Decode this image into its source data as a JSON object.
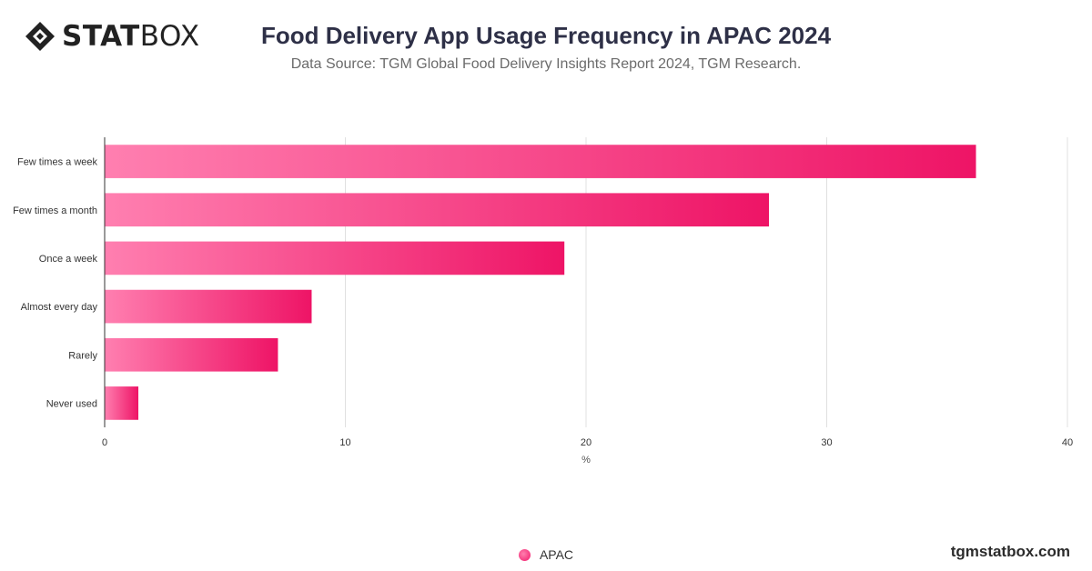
{
  "brand": {
    "logo_bold": "STAT",
    "logo_light": "BOX",
    "watermark": "tgmstatbox.com"
  },
  "header": {
    "title": "Food Delivery App Usage Frequency in APAC 2024",
    "subtitle": "Data Source: TGM Global Food Delivery Insights Report 2024, TGM Research."
  },
  "colors": {
    "bar_start": "#ff7fb0",
    "bar_end": "#ee1466",
    "grid": "#e0e0e0",
    "axis": "#333333",
    "text": "#333333"
  },
  "chart_data": {
    "type": "bar",
    "orientation": "horizontal",
    "categories": [
      "Few times a week",
      "Few times a month",
      "Once a week",
      "Almost every day",
      "Rarely",
      "Never used"
    ],
    "series": [
      {
        "name": "APAC",
        "values": [
          36.2,
          27.6,
          19.1,
          8.6,
          7.2,
          1.4
        ]
      }
    ],
    "xlabel": "%",
    "ylabel": "",
    "xlim": [
      0,
      40
    ],
    "xticks": [
      0,
      10,
      20,
      30,
      40
    ],
    "grid": true,
    "legend": "bottom-center"
  }
}
